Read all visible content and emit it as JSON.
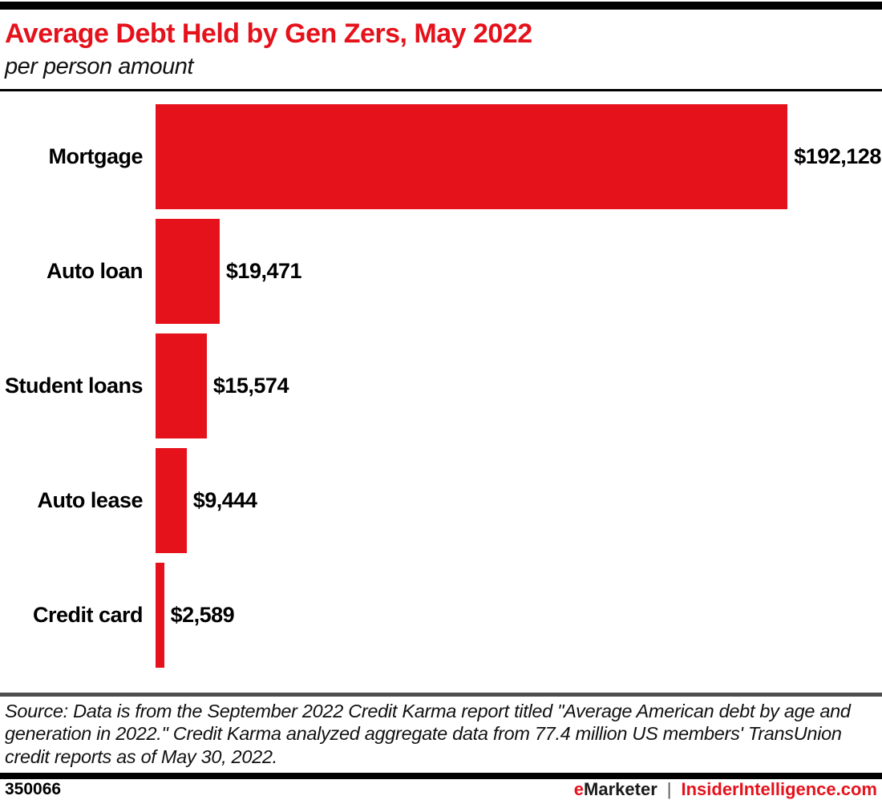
{
  "header": {
    "title": "Average Debt Held by Gen Zers, May 2022",
    "subtitle": "per person amount"
  },
  "chart_data": {
    "type": "bar",
    "orientation": "horizontal",
    "title": "Average Debt Held by Gen Zers, May 2022",
    "subtitle": "per person amount",
    "categories": [
      "Mortgage",
      "Auto loan",
      "Student loans",
      "Auto lease",
      "Credit card"
    ],
    "values": [
      192128,
      19471,
      15574,
      9444,
      2589
    ],
    "value_labels": [
      "$192,128",
      "$19,471",
      "$15,574",
      "$9,444",
      "$2,589"
    ],
    "xlim": [
      0,
      192128
    ],
    "max_bar_fraction_of_track": 0.87,
    "bar_color": "#e5121c",
    "grid": false,
    "legend": false
  },
  "source": {
    "text": "Source: Data is from the September 2022 Credit Karma report titled \"Average American debt by age and generation in 2022.\" Credit Karma analyzed aggregate data from 77.4 million US members' TransUnion credit reports as of May 30, 2022."
  },
  "footer": {
    "chart_id": "350066",
    "brand_e": "e",
    "brand_marketer": "Marketer",
    "separator": "|",
    "brand_insider": "InsiderIntelligence.com"
  },
  "colors": {
    "accent_red": "#e5121c",
    "rule_black": "#000000",
    "rule_gray": "#4d4d4d"
  }
}
